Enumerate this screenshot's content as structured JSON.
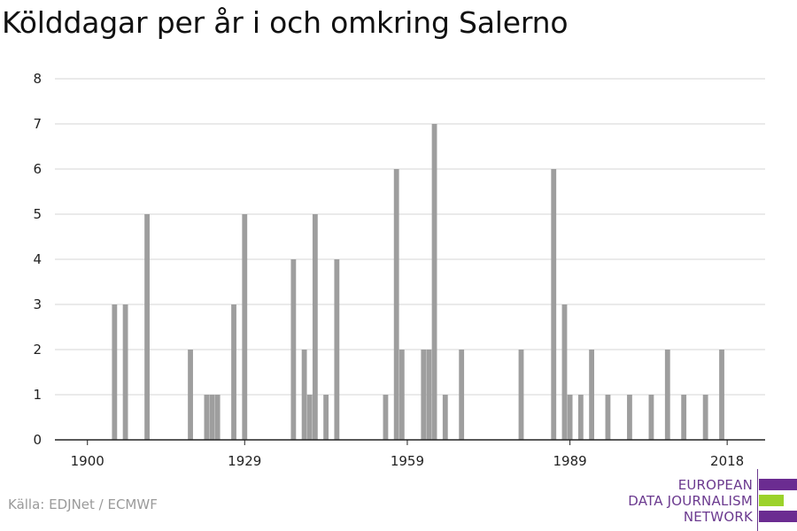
{
  "title": "Kölddagar per år i och omkring Salerno",
  "source": "Källa: EDJNet / ECMWF",
  "logo": {
    "lines": [
      "EUROPEAN",
      "DATA JOURNALISM",
      "NETWORK"
    ],
    "colors": {
      "text": "#6b3a8f",
      "purple": "#6b2c91",
      "green": "#9bd22a"
    }
  },
  "colors": {
    "bar": "#9e9e9e",
    "grid": "#dddddd",
    "axis": "#222222"
  },
  "chart_data": {
    "type": "bar",
    "title": "Kölddagar per år i och omkring Salerno",
    "xlabel": "",
    "ylabel": "",
    "xlim": [
      1894,
      2025
    ],
    "ylim": [
      0,
      8
    ],
    "x_ticks": [
      1900,
      1929,
      1959,
      1989,
      2018
    ],
    "y_ticks": [
      0,
      1,
      2,
      3,
      4,
      5,
      6,
      7,
      8
    ],
    "grid": true,
    "legend": "none",
    "x": [
      1905,
      1907,
      1911,
      1919,
      1922,
      1923,
      1924,
      1927,
      1929,
      1938,
      1940,
      1941,
      1942,
      1944,
      1946,
      1955,
      1957,
      1958,
      1962,
      1963,
      1964,
      1966,
      1969,
      1980,
      1986,
      1988,
      1989,
      1991,
      1993,
      1996,
      2000,
      2004,
      2007,
      2010,
      2014,
      2017
    ],
    "values": [
      3,
      3,
      5,
      2,
      1,
      1,
      1,
      3,
      5,
      4,
      2,
      1,
      5,
      1,
      4,
      1,
      6,
      2,
      2,
      2,
      7,
      1,
      2,
      2,
      6,
      3,
      1,
      1,
      2,
      1,
      1,
      1,
      2,
      1,
      1,
      2
    ]
  }
}
